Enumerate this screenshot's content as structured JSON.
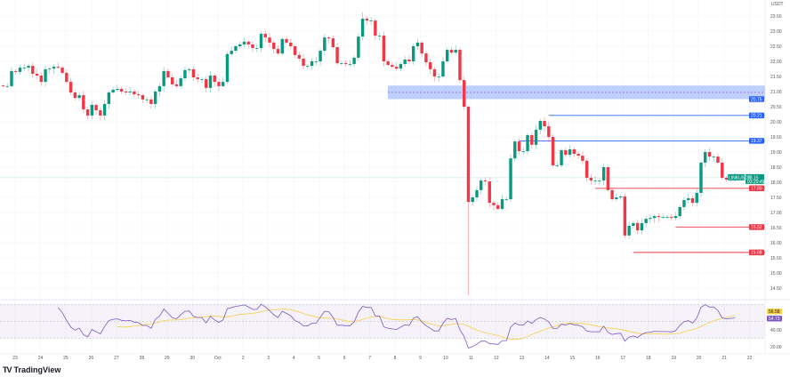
{
  "chart_data": {
    "type": "candlestick",
    "symbol": "LINKUSDT",
    "currency": "USDT",
    "interval_note": "4H candles, open = previous close",
    "first_open": 21.2,
    "closes": [
      21.18,
      21.18,
      21.68,
      21.65,
      21.79,
      21.79,
      21.85,
      21.59,
      21.53,
      21.32,
      21.74,
      21.76,
      21.82,
      21.79,
      21.62,
      21.32,
      20.97,
      20.79,
      20.88,
      20.41,
      20.21,
      20.56,
      20.38,
      20.21,
      20.59,
      20.97,
      21.06,
      21.09,
      21.0,
      20.97,
      21.0,
      20.91,
      20.88,
      20.74,
      20.74,
      20.59,
      21.0,
      21.18,
      21.68,
      21.47,
      21.24,
      21.18,
      21.44,
      21.71,
      21.74,
      21.47,
      21.41,
      21.41,
      21.12,
      21.53,
      21.32,
      21.18,
      21.32,
      22.24,
      22.35,
      22.5,
      22.56,
      22.65,
      22.56,
      22.44,
      22.44,
      22.91,
      22.79,
      22.62,
      22.41,
      22.26,
      22.74,
      22.62,
      22.5,
      22.21,
      22.09,
      21.85,
      21.85,
      22.0,
      22.0,
      22.35,
      22.79,
      22.76,
      22.47,
      21.94,
      21.94,
      21.91,
      21.91,
      22.12,
      22.82,
      23.41,
      23.35,
      23.35,
      22.85,
      22.85,
      22.0,
      21.88,
      21.82,
      21.76,
      21.91,
      22.06,
      22.0,
      22.5,
      22.62,
      22.26,
      21.97,
      21.74,
      21.5,
      21.5,
      22.0,
      22.38,
      22.29,
      22.38,
      21.38,
      20.5,
      17.35,
      17.5,
      17.74,
      18.06,
      18.03,
      17.32,
      17.24,
      17.12,
      17.44,
      17.44,
      18.79,
      19.35,
      19.03,
      19.03,
      19.56,
      19.24,
      19.74,
      20.03,
      19.85,
      19.5,
      18.56,
      18.56,
      19.06,
      18.91,
      19.09,
      18.94,
      18.88,
      18.71,
      18.15,
      18.06,
      18.06,
      18.06,
      18.5,
      17.74,
      17.44,
      17.5,
      17.53,
      16.24,
      16.56,
      16.65,
      16.41,
      16.65,
      16.79,
      16.82,
      16.88,
      16.85,
      16.85,
      16.85,
      16.82,
      16.88,
      17.18,
      17.41,
      17.47,
      17.32,
      17.65,
      18.65,
      19.0,
      18.85,
      18.85,
      18.65,
      18.15,
      18.09,
      18.12,
      18.15
    ],
    "notable_low": {
      "index": 110,
      "value": 14.26
    },
    "notable_high": {
      "index": 85,
      "value": 23.62
    },
    "ylim": [
      14.2,
      23.8
    ],
    "y_ticks": [
      "23.50",
      "23.00",
      "22.50",
      "22.00",
      "21.50",
      "21.00",
      "20.50",
      "20.00",
      "19.50",
      "19.00",
      "18.50",
      "18.00",
      "17.50",
      "17.00",
      "16.50",
      "16.00",
      "15.50",
      "15.00",
      "14.50"
    ],
    "x_ticks": [
      "23",
      "24",
      "25",
      "26",
      "27",
      "28",
      "29",
      "30",
      "Oct",
      "2",
      "3",
      "4",
      "5",
      "6",
      "7",
      "8",
      "9",
      "10",
      "11",
      "12",
      "13",
      "14",
      "15",
      "16",
      "17",
      "18",
      "19",
      "20",
      "21",
      "22"
    ],
    "current_price": {
      "label": "18.15",
      "countdown": "03:29:49",
      "symbol_tag": "LINKUSDT"
    },
    "zone": {
      "low": 20.75,
      "high": 21.2,
      "mid": 20.97,
      "label": "20.75"
    },
    "levels": [
      {
        "value": 20.21,
        "label": "20.21",
        "kind": "resistance",
        "start_index": 129
      },
      {
        "value": 19.37,
        "label": "19.37",
        "kind": "resistance",
        "start_index": 122
      },
      {
        "value": 17.8,
        "label": "17.80",
        "kind": "support",
        "start_index": 140
      },
      {
        "value": 16.52,
        "label": "16.52",
        "kind": "support",
        "start_index": 159
      },
      {
        "value": 15.68,
        "label": "15.68",
        "kind": "support",
        "start_index": 149
      }
    ],
    "rsi": {
      "period": 14,
      "ma_period": 14,
      "rsi_label": "54.73",
      "ma_label": "56.58",
      "bands": [
        70,
        50,
        30
      ],
      "ticks": [
        "40.00",
        "20.00"
      ]
    },
    "colors": {
      "up": "#089981",
      "down": "#f23645",
      "level_blue": "#2962ff",
      "level_red": "#f23645",
      "rsi": "#7e57c2",
      "rsi_ma": "#f7d047",
      "zone": "#2962ff"
    }
  },
  "branding": {
    "logo_text": "TradingView"
  }
}
